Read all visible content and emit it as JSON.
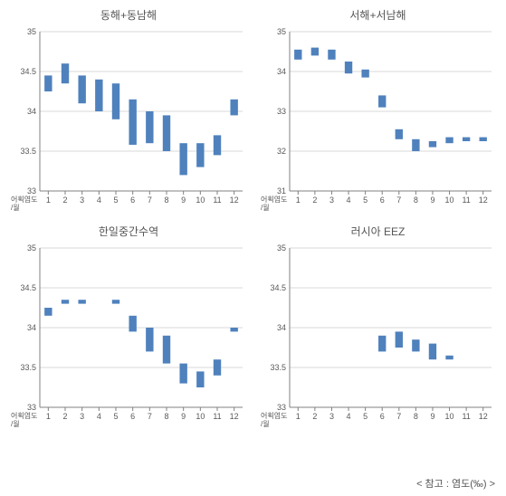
{
  "footer": "< 참고 : 염도(‰) >",
  "common": {
    "x_categories": [
      "1",
      "2",
      "3",
      "4",
      "5",
      "6",
      "7",
      "8",
      "9",
      "10",
      "11",
      "12"
    ],
    "x_axis_label_lines": [
      "어획염도",
      "/월"
    ],
    "bar_color": "#4f81bd",
    "grid_color": "#d9d9d9",
    "axis_color": "#808080",
    "tick_font_color": "#595959",
    "background_color": "#ffffff",
    "title_fontsize": 12,
    "tick_fontsize": 9
  },
  "panels": [
    {
      "title": "동해+동남해",
      "ylim": [
        33,
        35
      ],
      "ytick_step": 0.5,
      "bars": [
        {
          "x": "1",
          "low": 34.25,
          "high": 34.45
        },
        {
          "x": "2",
          "low": 34.35,
          "high": 34.6
        },
        {
          "x": "3",
          "low": 34.1,
          "high": 34.45
        },
        {
          "x": "4",
          "low": 34.0,
          "high": 34.4
        },
        {
          "x": "5",
          "low": 33.9,
          "high": 34.35
        },
        {
          "x": "6",
          "low": 33.58,
          "high": 34.15
        },
        {
          "x": "7",
          "low": 33.6,
          "high": 34.0
        },
        {
          "x": "8",
          "low": 33.5,
          "high": 33.95
        },
        {
          "x": "9",
          "low": 33.2,
          "high": 33.6
        },
        {
          "x": "10",
          "low": 33.3,
          "high": 33.6
        },
        {
          "x": "11",
          "low": 33.45,
          "high": 33.7
        },
        {
          "x": "12",
          "low": 33.95,
          "high": 34.15
        }
      ]
    },
    {
      "title": "서해+서남해",
      "ylim": [
        31,
        35
      ],
      "ytick_step": 1,
      "bars": [
        {
          "x": "1",
          "low": 34.3,
          "high": 34.55
        },
        {
          "x": "2",
          "low": 34.4,
          "high": 34.6
        },
        {
          "x": "3",
          "low": 34.3,
          "high": 34.55
        },
        {
          "x": "4",
          "low": 33.95,
          "high": 34.25
        },
        {
          "x": "5",
          "low": 33.85,
          "high": 34.05
        },
        {
          "x": "6",
          "low": 33.1,
          "high": 33.4
        },
        {
          "x": "7",
          "low": 32.3,
          "high": 32.55
        },
        {
          "x": "8",
          "low": 32.0,
          "high": 32.3
        },
        {
          "x": "9",
          "low": 32.1,
          "high": 32.25
        },
        {
          "x": "10",
          "low": 32.2,
          "high": 32.35
        },
        {
          "x": "11",
          "low": 32.25,
          "high": 32.35
        },
        {
          "x": "12",
          "low": 32.25,
          "high": 32.35
        }
      ]
    },
    {
      "title": "한일중간수역",
      "ylim": [
        33,
        35
      ],
      "ytick_step": 0.5,
      "bars": [
        {
          "x": "1",
          "low": 34.15,
          "high": 34.25
        },
        {
          "x": "2",
          "low": 34.3,
          "high": 34.35
        },
        {
          "x": "3",
          "low": 34.3,
          "high": 34.35
        },
        {
          "x": "5",
          "low": 34.3,
          "high": 34.35
        },
        {
          "x": "6",
          "low": 33.95,
          "high": 34.15
        },
        {
          "x": "7",
          "low": 33.7,
          "high": 34.0
        },
        {
          "x": "8",
          "low": 33.55,
          "high": 33.9
        },
        {
          "x": "9",
          "low": 33.3,
          "high": 33.55
        },
        {
          "x": "10",
          "low": 33.25,
          "high": 33.45
        },
        {
          "x": "11",
          "low": 33.4,
          "high": 33.6
        },
        {
          "x": "12",
          "low": 33.95,
          "high": 34.0
        }
      ]
    },
    {
      "title": "러시아 EEZ",
      "ylim": [
        33,
        35
      ],
      "ytick_step": 0.5,
      "bars": [
        {
          "x": "6",
          "low": 33.7,
          "high": 33.9
        },
        {
          "x": "7",
          "low": 33.75,
          "high": 33.95
        },
        {
          "x": "8",
          "low": 33.7,
          "high": 33.85
        },
        {
          "x": "9",
          "low": 33.6,
          "high": 33.8
        },
        {
          "x": "10",
          "low": 33.6,
          "high": 33.65
        }
      ]
    }
  ]
}
